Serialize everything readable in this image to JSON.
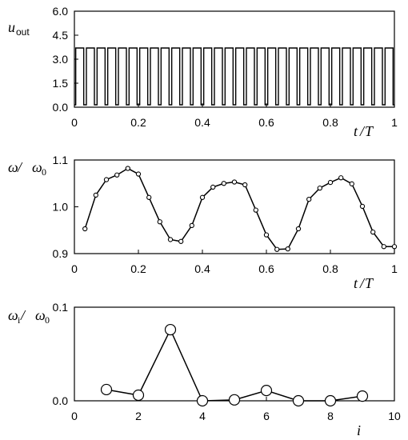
{
  "chart_data": [
    {
      "type": "line",
      "title": "",
      "ylabel": {
        "var": "u",
        "sub": "out"
      },
      "xlabel": {
        "a": "t",
        "slash": "/",
        "b": "T"
      },
      "xlim": [
        0,
        1
      ],
      "ylim": [
        0,
        6
      ],
      "xticks": [
        0,
        0.2,
        0.4,
        0.6,
        0.8,
        1
      ],
      "xtick_labels": [
        "0",
        "0.2",
        "0.4",
        "0.6",
        "0.8",
        "1"
      ],
      "yticks": [
        0,
        1.5,
        3,
        4.5,
        6
      ],
      "ytick_labels": [
        "0.0",
        "1.5",
        "3.0",
        "4.5",
        "6.0"
      ],
      "series": [
        {
          "pulses": 30,
          "high": 3.7,
          "low": 0.15,
          "duty": 0.75
        }
      ]
    },
    {
      "type": "line",
      "title": "",
      "ylabel": {
        "var": "ω",
        "slash": " / ",
        "var2": "ω",
        "sub2": "0"
      },
      "xlabel": {
        "a": "t",
        "slash": "/",
        "b": "T"
      },
      "xlim": [
        0,
        1
      ],
      "ylim": [
        0.9,
        1.1
      ],
      "xticks": [
        0,
        0.2,
        0.4,
        0.6,
        0.8,
        1
      ],
      "xtick_labels": [
        "0",
        "0.2",
        "0.4",
        "0.6",
        "0.8",
        "1"
      ],
      "yticks": [
        0.9,
        1.0,
        1.1
      ],
      "ytick_labels": [
        "0.9",
        "1.0",
        "1.1"
      ],
      "series": [
        {
          "x": [
            0.033,
            0.067,
            0.1,
            0.133,
            0.167,
            0.2,
            0.233,
            0.267,
            0.3,
            0.333,
            0.367,
            0.4,
            0.433,
            0.467,
            0.5,
            0.533,
            0.567,
            0.6,
            0.633,
            0.667,
            0.7,
            0.733,
            0.767,
            0.8,
            0.833,
            0.867,
            0.9,
            0.933,
            0.967,
            1.0
          ],
          "y": [
            0.953,
            1.025,
            1.058,
            1.068,
            1.082,
            1.07,
            1.02,
            0.968,
            0.93,
            0.926,
            0.96,
            1.02,
            1.042,
            1.05,
            1.053,
            1.047,
            0.993,
            0.94,
            0.909,
            0.91,
            0.953,
            1.016,
            1.04,
            1.052,
            1.062,
            1.049,
            1.001,
            0.946,
            0.915,
            0.915
          ]
        }
      ]
    },
    {
      "type": "line",
      "title": "",
      "ylabel": {
        "var": "ω",
        "sub": "i",
        "slash": " / ",
        "var2": "ω",
        "sub2": "0"
      },
      "xlabel": {
        "a": "i"
      },
      "xlim": [
        0,
        10
      ],
      "ylim": [
        0,
        0.1
      ],
      "xticks": [
        0,
        2,
        4,
        6,
        8,
        10
      ],
      "xtick_labels": [
        "0",
        "2",
        "4",
        "6",
        "8",
        "10"
      ],
      "yticks": [
        0,
        0.1
      ],
      "ytick_labels": [
        "0.0",
        "0.1"
      ],
      "series": [
        {
          "x": [
            1,
            2,
            3,
            4,
            5,
            6,
            7,
            8,
            9
          ],
          "y": [
            0.012,
            0.006,
            0.076,
            0.0,
            0.001,
            0.011,
            0.0,
            0.0,
            0.005
          ]
        }
      ]
    }
  ]
}
